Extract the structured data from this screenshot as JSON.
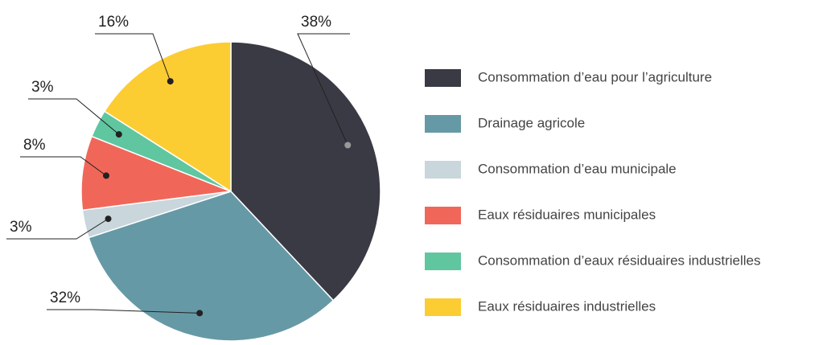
{
  "chart_data": {
    "type": "pie",
    "categories": [
      "Consommation d’eau pour l’agriculture",
      "Drainage agricole",
      "Consommation d’eau municipale",
      "Eaux résiduaires municipales",
      "Consommation d’eaux résiduaires industrielles",
      "Eaux résiduaires industrielles"
    ],
    "values": [
      38,
      32,
      3,
      8,
      3,
      16
    ],
    "value_labels": [
      "38%",
      "32%",
      "3%",
      "8%",
      "3%",
      "16%"
    ],
    "colors": [
      "#3a3a44",
      "#6699a6",
      "#c9d6dc",
      "#f0675a",
      "#5fc6a0",
      "#fccc33"
    ],
    "legend": "right"
  }
}
